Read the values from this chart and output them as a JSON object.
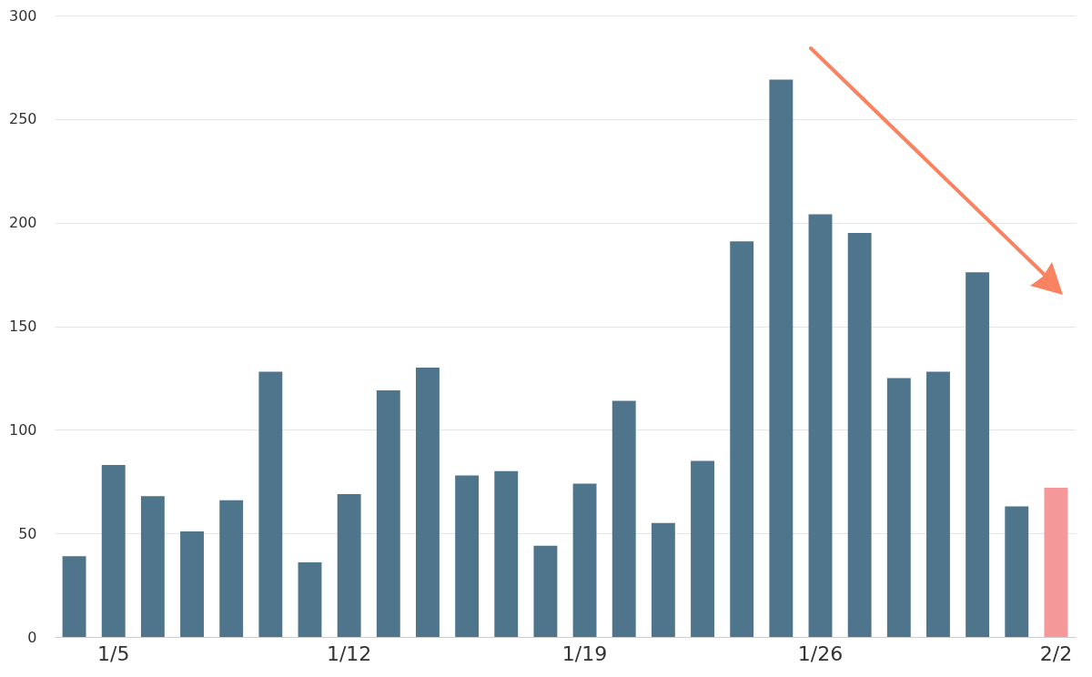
{
  "chart_data": {
    "type": "bar",
    "categories": [
      null,
      "1/5",
      null,
      null,
      null,
      null,
      null,
      "1/12",
      null,
      null,
      null,
      null,
      null,
      "1/19",
      null,
      null,
      null,
      null,
      null,
      "1/26",
      null,
      null,
      null,
      null,
      null,
      "2/2"
    ],
    "values": [
      39,
      83,
      68,
      51,
      66,
      128,
      36,
      69,
      119,
      130,
      78,
      80,
      44,
      74,
      114,
      55,
      85,
      191,
      269,
      204,
      195,
      125,
      128,
      176,
      63,
      72
    ],
    "colors": [
      "#4f758c",
      "#4f758c",
      "#4f758c",
      "#4f758c",
      "#4f758c",
      "#4f758c",
      "#4f758c",
      "#4f758c",
      "#4f758c",
      "#4f758c",
      "#4f758c",
      "#4f758c",
      "#4f758c",
      "#4f758c",
      "#4f758c",
      "#4f758c",
      "#4f758c",
      "#4f758c",
      "#4f758c",
      "#4f758c",
      "#4f758c",
      "#4f758c",
      "#4f758c",
      "#4f758c",
      "#4f758c",
      "#f4989a"
    ],
    "ylim": [
      0,
      300
    ],
    "yticks": [
      0,
      50,
      100,
      150,
      200,
      250,
      300
    ],
    "grid": "y"
  }
}
